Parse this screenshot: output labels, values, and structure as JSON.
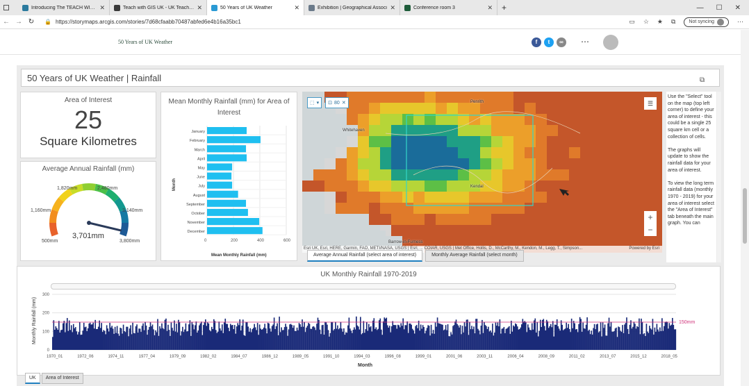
{
  "browser": {
    "tabs": [
      {
        "label": "Introducing The TEACH WITH GI",
        "color": "#2b7a9e"
      },
      {
        "label": "Teach with GIS UK - UK Teaching",
        "color": "#3a3a3a"
      },
      {
        "label": "50 Years of UK Weather",
        "color": "#2a9ad4"
      },
      {
        "label": "Exhibition | Geographical Associ",
        "color": "#6b7a8a"
      },
      {
        "label": "Conference room 3",
        "color": "#1e5c3a"
      }
    ],
    "url": "https://storymaps.arcgis.com/stories/7d68cfaabb70487abfed6e4b16a35bc1",
    "sync_label": "Not syncing"
  },
  "story": {
    "title": "50 Years of UK Weather"
  },
  "dashboard": {
    "title": "50 Years of UK Weather | Rainfall",
    "area_of_interest": {
      "title": "Area of Interest",
      "value": "25",
      "unit": "Square Kilometres"
    },
    "gauge": {
      "title": "Average Annual Rainfall (mm)",
      "value": 3701,
      "value_label": "3,701mm",
      "min_label": "500mm",
      "max_label": "3,800mm",
      "ticks": [
        "1,160mm",
        "1,820mm",
        "2,480mm",
        "3,140mm"
      ],
      "min": 500,
      "max": 3800
    },
    "monthly_chart": {
      "title": "Mean Monthly Rainfall (mm) for Area of Interest",
      "ylabel": "Month",
      "xlabel": "Mean Monthly Rainfall (mm)",
      "xticks": [
        "0",
        "200",
        "400",
        "600"
      ]
    },
    "map": {
      "toolbar_count": "80",
      "labels": [
        "Penrith",
        "Whitehaven",
        "Kendal",
        "Barrow-in-Furness"
      ],
      "attribution": "Esri UK, Esri, HERE, Garmin, FAO, METI/NASA, USGS | Esri, ... COIAR, USGS | Met Office, Hollis, D., McCarthy, M., Kendon, M., Legg, T., Simpson...",
      "powered_by": "Powered by Esri",
      "zoom_in": "+",
      "zoom_out": "−",
      "tabs": [
        "Average Annual Rainfall (select area of interest)",
        "Monthly Average Rainfall (select month)"
      ]
    },
    "side_text": "Use the \"Select\" tool on the map (top left corner) to define your area of interest - this could be a single 25 square km cell or a collection of cells.\n\nThe graphs will update to show the rainfall data for your area of interest.\n\nTo view the long term rainfall data (monthly 1970 - 2019) for your area of interest select the \"Area of Interest\" tab beneath the main graph. You can",
    "timeseries": {
      "title": "UK Monthly Rainfall 1970-2019",
      "xlabel": "Month",
      "ylabel": "Monthly Rainfall (mm)",
      "ref_label": "150mm",
      "yticks": [
        "0",
        "100",
        "200",
        "300"
      ],
      "xticks": [
        "1970_01",
        "1972_06",
        "1974_11",
        "1977_04",
        "1979_09",
        "1982_02",
        "1984_07",
        "1986_12",
        "1989_05",
        "1991_10",
        "1994_03",
        "1996_08",
        "1999_01",
        "2001_06",
        "2003_11",
        "2006_04",
        "2008_09",
        "2011_02",
        "2013_07",
        "2015_12",
        "2018_05"
      ]
    },
    "bottom_tabs": [
      "UK",
      "Area of Interest"
    ]
  },
  "chart_data": [
    {
      "type": "bar",
      "title": "Mean Monthly Rainfall (mm) for Area of Interest",
      "categories": [
        "January",
        "February",
        "March",
        "April",
        "May",
        "June",
        "July",
        "August",
        "September",
        "October",
        "November",
        "December"
      ],
      "values": [
        300,
        405,
        295,
        300,
        190,
        185,
        190,
        235,
        295,
        310,
        395,
        420
      ],
      "xlabel": "Mean Monthly Rainfall (mm)",
      "ylabel": "Month",
      "xlim": [
        0,
        600
      ],
      "orientation": "horizontal",
      "color": "#1fbff0"
    },
    {
      "type": "bar",
      "title": "UK Monthly Rainfall 1970-2019",
      "xlabel": "Month",
      "ylabel": "Monthly Rainfall (mm)",
      "ylim": [
        0,
        300
      ],
      "reference_line": 150,
      "color": "#1a2a78",
      "x_range": [
        "1970_01",
        "2019_12"
      ],
      "typical_range": [
        30,
        190
      ]
    }
  ]
}
